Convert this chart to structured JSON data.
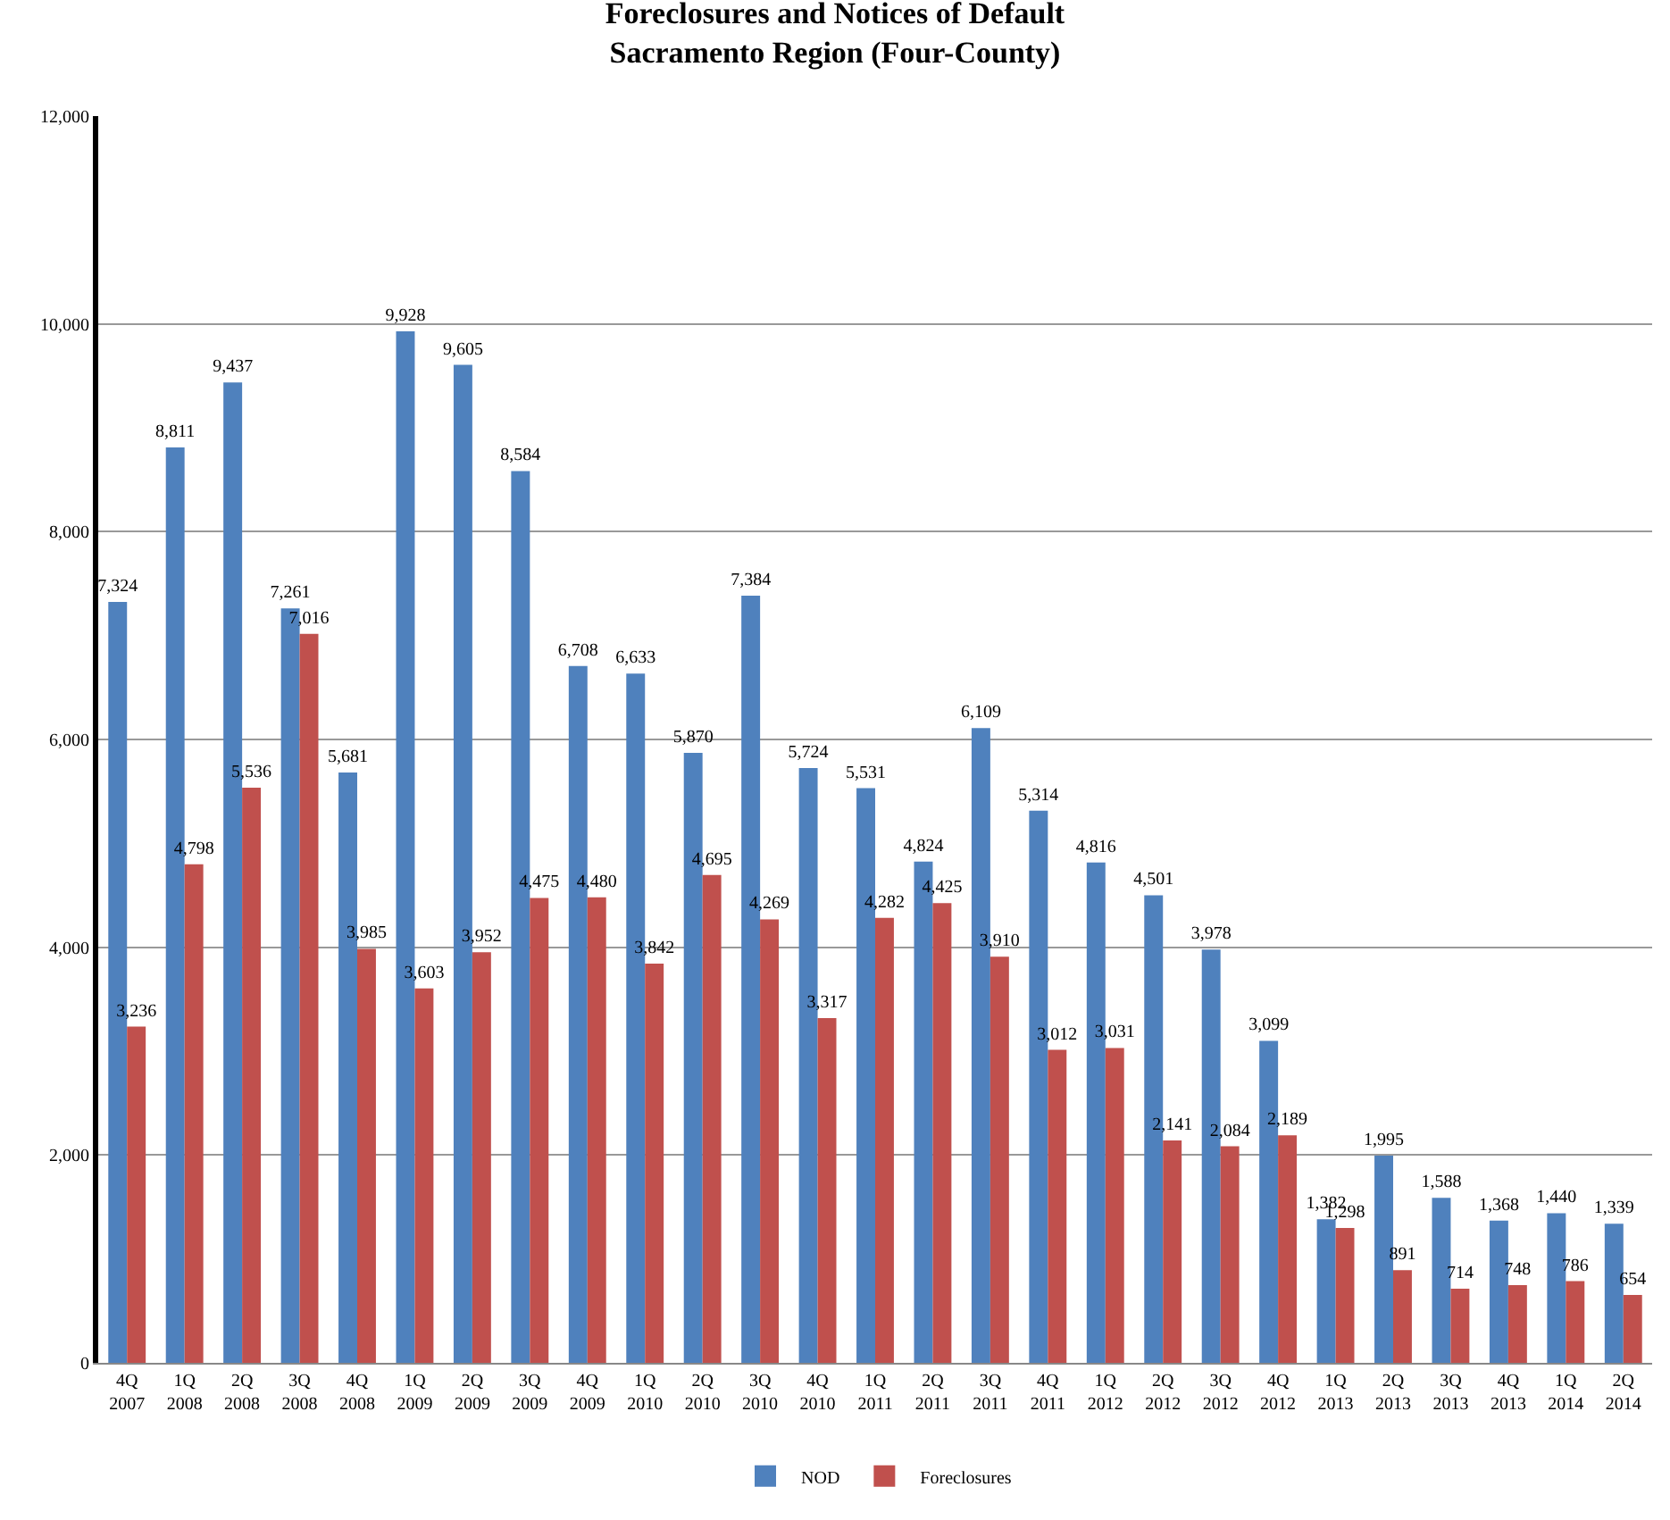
{
  "chart_data": {
    "type": "bar",
    "title": "Foreclosures and Notices of Default\nSacramento Region (Four-County)",
    "categories": [
      "4Q 2007",
      "1Q 2008",
      "2Q 2008",
      "3Q 2008",
      "4Q 2008",
      "1Q 2009",
      "2Q 2009",
      "3Q 2009",
      "4Q 2009",
      "1Q 2010",
      "2Q 2010",
      "3Q 2010",
      "4Q 2010",
      "1Q 2011",
      "2Q 2011",
      "3Q 2011",
      "4Q 2011",
      "1Q 2012",
      "2Q 2012",
      "3Q 2012",
      "4Q 2012",
      "1Q 2013",
      "2Q 2013",
      "3Q 2013",
      "4Q 2013",
      "1Q 2014",
      "2Q 2014"
    ],
    "series": [
      {
        "name": "NOD",
        "color": "#4f81bd",
        "values": [
          7324,
          8811,
          9437,
          7261,
          5681,
          9928,
          9605,
          8584,
          6708,
          6633,
          5870,
          7384,
          5724,
          5531,
          4824,
          6109,
          5314,
          4816,
          4501,
          3978,
          3099,
          1382,
          1995,
          1588,
          1368,
          1440,
          1339
        ],
        "value_labels": [
          "7,324",
          "8,811",
          "9,437",
          "7,261",
          "5,681",
          "9,928",
          "9,605",
          "8,584",
          "6,708",
          "6,633",
          "5,870",
          "7,384",
          "5,724",
          "5,531",
          "4,824",
          "6,109",
          "5,314",
          "4,816",
          "4,501",
          "3,978",
          "3,099",
          "1,382",
          "1,995",
          "1,588",
          "1,368",
          "1,440",
          "1,339"
        ]
      },
      {
        "name": "Foreclosures",
        "color": "#c0504d",
        "values": [
          3236,
          4798,
          5536,
          7016,
          3985,
          3603,
          3952,
          4475,
          4480,
          3842,
          4695,
          4269,
          3317,
          4282,
          4425,
          3910,
          3012,
          3031,
          2141,
          2084,
          2189,
          1298,
          891,
          714,
          748,
          786,
          654
        ],
        "value_labels": [
          "3,236",
          "4,798",
          "5,536",
          "7,016",
          "3,985",
          "3,603",
          "3,952",
          "4,475",
          "4,480",
          "3,842",
          "4,695",
          "4,269",
          "3,317",
          "4,282",
          "4,425",
          "3,910",
          "3,012",
          "3,031",
          "2,141",
          "2,084",
          "2,189",
          "1,298",
          "891",
          "714",
          "748",
          "786",
          "654"
        ]
      }
    ],
    "ylim": [
      0,
      12000
    ],
    "yticks": [
      0,
      {
        "value": 2000,
        "label": "2,000"
      },
      {
        "value": 4000,
        "label": "4,000"
      },
      {
        "value": 6000,
        "label": "6,000"
      },
      {
        "value": 8000,
        "label": "8,000"
      },
      {
        "value": 10000,
        "label": "10,000"
      },
      {
        "value": 12000,
        "label": "12,000"
      }
    ],
    "grid": "y",
    "legend": "bottom"
  }
}
